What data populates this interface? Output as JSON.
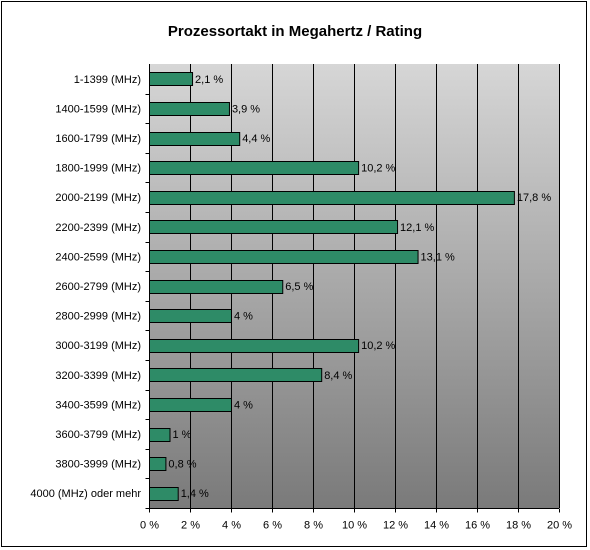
{
  "chart_data": {
    "type": "bar",
    "orientation": "horizontal",
    "title": "Prozessortakt in Megahertz / Rating",
    "xlabel": "",
    "ylabel": "",
    "categories": [
      "1-1399 (MHz)",
      "1400-1599 (MHz)",
      "1600-1799 (MHz)",
      "1800-1999 (MHz)",
      "2000-2199 (MHz)",
      "2200-2399 (MHz)",
      "2400-2599 (MHz)",
      "2600-2799 (MHz)",
      "2800-2999 (MHz)",
      "3000-3199 (MHz)",
      "3200-3399 (MHz)",
      "3400-3599 (MHz)",
      "3600-3799 (MHz)",
      "3800-3999 (MHz)",
      "4000 (MHz) oder mehr"
    ],
    "values": [
      2.1,
      3.9,
      4.4,
      10.2,
      17.8,
      12.1,
      13.1,
      6.5,
      4,
      10.2,
      8.4,
      4,
      1,
      0.8,
      1.4
    ],
    "data_labels": [
      "2,1 %",
      "3,9 %",
      "4,4 %",
      "10,2 %",
      "17,8 %",
      "12,1 %",
      "13,1 %",
      "6,5 %",
      "4 %",
      "10,2 %",
      "8,4 %",
      "4 %",
      "1 %",
      "0,8 %",
      "1,4 %"
    ],
    "xlim": [
      0,
      20
    ],
    "xticks": [
      0,
      2,
      4,
      6,
      8,
      10,
      12,
      14,
      16,
      18,
      20
    ],
    "xtick_labels": [
      "0 %",
      "2 %",
      "4 %",
      "6 %",
      "8 %",
      "10 %",
      "12 %",
      "14 %",
      "16 %",
      "18 %",
      "20 %"
    ],
    "grid": true,
    "legend": "none",
    "colors": {
      "bar_fill": "#2e8b67",
      "bar_stroke": "#000000",
      "plot_bg_top": "#d6d6d6",
      "plot_bg_bottom": "#7a7a7a",
      "gridline": "#000000"
    }
  }
}
